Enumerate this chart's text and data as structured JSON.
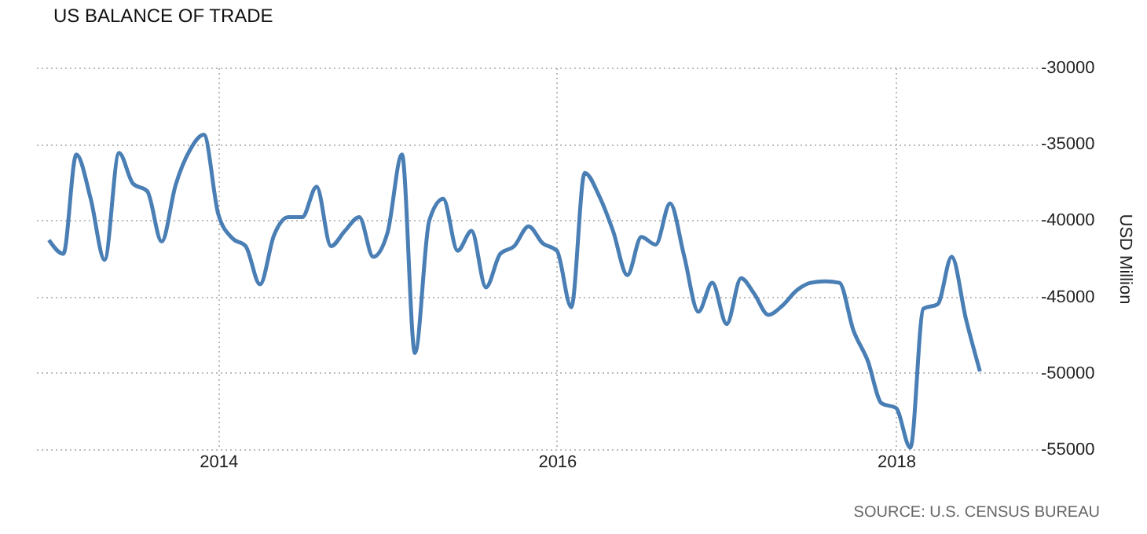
{
  "chart_data": {
    "type": "line",
    "title": "US BALANCE OF TRADE",
    "ylabel": "USD Million",
    "annotations": [
      "SOURCE: U.S. CENSUS BUREAU"
    ],
    "x": [
      "2013-01",
      "2013-02",
      "2013-03",
      "2013-04",
      "2013-05",
      "2013-06",
      "2013-07",
      "2013-08",
      "2013-09",
      "2013-10",
      "2013-11",
      "2013-12",
      "2014-01",
      "2014-02",
      "2014-03",
      "2014-04",
      "2014-05",
      "2014-06",
      "2014-07",
      "2014-08",
      "2014-09",
      "2014-10",
      "2014-11",
      "2014-12",
      "2015-01",
      "2015-02",
      "2015-03",
      "2015-04",
      "2015-05",
      "2015-06",
      "2015-07",
      "2015-08",
      "2015-09",
      "2015-10",
      "2015-11",
      "2015-12",
      "2016-01",
      "2016-02",
      "2016-03",
      "2016-04",
      "2016-05",
      "2016-06",
      "2016-07",
      "2016-08",
      "2016-09",
      "2016-10",
      "2016-11",
      "2016-12",
      "2017-01",
      "2017-02",
      "2017-03",
      "2017-04",
      "2017-05",
      "2017-06",
      "2017-07",
      "2017-08",
      "2017-09",
      "2017-10",
      "2017-11",
      "2017-12",
      "2018-01",
      "2018-02",
      "2018-03",
      "2018-04",
      "2018-05",
      "2018-06",
      "2018-07"
    ],
    "series": [
      {
        "color": "#4a7fb5",
        "values": [
          -41300,
          -42200,
          -35700,
          -38600,
          -42600,
          -35600,
          -37600,
          -38100,
          -41400,
          -37700,
          -35400,
          -34400,
          -39600,
          -41200,
          -41700,
          -44200,
          -41000,
          -39800,
          -39800,
          -37800,
          -41700,
          -40700,
          -39800,
          -42400,
          -40800,
          -35700,
          -48700,
          -40000,
          -38600,
          -42000,
          -40700,
          -44400,
          -42200,
          -41700,
          -40400,
          -41500,
          -42000,
          -45700,
          -36900,
          -38400,
          -40700,
          -43600,
          -41100,
          -41600,
          -38900,
          -42300,
          -46000,
          -44100,
          -46800,
          -43800,
          -44800,
          -46200,
          -45600,
          -44600,
          -44100,
          -44000,
          -44100,
          -47200,
          -49200,
          -52000,
          -52300,
          -54900,
          -45800,
          -45500,
          -42400,
          -46500,
          -49900
        ]
      }
    ],
    "xlim": [
      "2012-12",
      "2018-11"
    ],
    "xticks": [
      "2014",
      "2016",
      "2018"
    ],
    "ylim": [
      -55000,
      -30000
    ],
    "yticks": [
      {
        "value": -30000,
        "label": "-30000"
      },
      {
        "value": -35000,
        "label": "-35000"
      },
      {
        "value": -40000,
        "label": "-40000"
      },
      {
        "value": -45000,
        "label": "-45000"
      },
      {
        "value": -50000,
        "label": "-50000"
      },
      {
        "value": -55000,
        "label": "-55000"
      }
    ],
    "grid": true,
    "legend": false,
    "marker": "none",
    "line_style": "solid"
  }
}
